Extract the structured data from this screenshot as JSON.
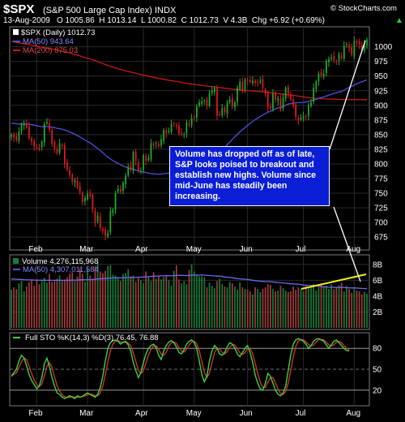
{
  "header": {
    "ticker": "$SPX",
    "name": "(S&P 500 Large Cap Index) INDX",
    "brand": "© StockCharts.com",
    "date": "13-Aug-2009",
    "ohlc": "O 1005.86  H 1013.14  L 1000.82  C 1012.73  V 4.3B  Chg +6.92 (+0.69%)",
    "ohlc_arrow": "▲"
  },
  "price_panel": {
    "legend_daily": "$SPX (Daily) 1012.73",
    "legend_ma50": "MA(50) 943.64",
    "legend_ma200": "MA(200) 875.03"
  },
  "volume_panel": {
    "legend_volume": "Volume 4,276,115,968",
    "legend_ma50": "MA(50) 4,307,011,584"
  },
  "sto_panel": {
    "legend": "Full STO %K(14,3) %D(3) 76.45, 76.88"
  },
  "annotation": {
    "text": "Volume has dropped off as of late, S&P looks poised to breakout and establish new highs. Volume since mid-June has steadily been increasing."
  },
  "colors": {
    "background": "#000000",
    "up_candle": "#1db32b",
    "down_candle": "#e21b22",
    "ma50": "#4f4fd9",
    "ma200": "#c81818",
    "volume_up": "#1a7a3a",
    "volume_down": "#a03b3b",
    "sto_k": "#d33a2c",
    "sto_d": "#41d141",
    "trend_line": "#f0f020",
    "callout": "#0a1ed6"
  },
  "chart_data": [
    {
      "type": "candlestick",
      "title": "$SPX (Daily)",
      "x_months": [
        "Feb",
        "Mar",
        "Apr",
        "May",
        "Jun",
        "Jul",
        "Aug"
      ],
      "y_ticks": [
        675,
        700,
        725,
        750,
        775,
        800,
        825,
        850,
        875,
        900,
        925,
        950,
        975,
        1000
      ],
      "ylim": [
        660,
        1030
      ],
      "close_series": [
        850,
        845,
        840,
        855,
        868,
        870,
        862,
        845,
        838,
        830,
        827,
        826,
        838,
        868,
        872,
        858,
        835,
        826,
        818,
        835,
        832,
        800,
        790,
        780,
        770,
        772,
        760,
        752,
        735,
        742,
        749,
        745,
        722,
        700,
        712,
        690,
        686,
        677,
        682,
        719,
        722,
        750,
        758,
        753,
        768,
        780,
        795,
        790,
        820,
        805,
        787,
        787,
        815,
        805,
        810,
        835,
        832,
        835,
        830,
        842,
        858,
        852,
        856,
        868,
        869,
        866,
        851,
        851,
        851,
        871,
        866,
        878,
        880,
        898,
        905,
        907,
        908,
        900,
        920,
        925,
        930,
        882,
        884,
        895,
        888,
        905,
        910,
        898,
        905,
        930,
        940,
        925,
        944,
        942,
        940,
        942,
        938,
        940,
        943,
        930,
        920,
        896,
        895,
        920,
        910,
        912,
        892,
        913,
        930,
        920,
        910,
        899,
        880,
        875,
        879,
        882,
        880,
        900,
        905,
        930,
        941,
        954,
        950,
        954,
        976,
        979,
        982,
        977,
        975,
        987,
        980,
        1002,
        1005,
        998,
        986,
        1010,
        1007,
        1004,
        992,
        1005,
        1012.73
      ],
      "series": [
        {
          "name": "$SPX (Daily)",
          "last": 1012.73
        },
        {
          "name": "MA(50)",
          "last": 943.64
        },
        {
          "name": "MA(200)",
          "last": 875.03
        }
      ]
    },
    {
      "type": "bar",
      "title": "Volume",
      "y_ticks": [
        "2B",
        "4B",
        "6B",
        "8B"
      ],
      "y_tick_values": [
        2,
        4,
        6,
        8
      ],
      "ylim": [
        0,
        9
      ],
      "values_billions": [
        4.8,
        5.1,
        4.9,
        5.6,
        5.9,
        4.6,
        5.2,
        5.8,
        6.0,
        5.3,
        6.1,
        5.5,
        5.9,
        6.3,
        5.7,
        6.8,
        5.8,
        5.9,
        6.2,
        6.6,
        5.9,
        6.1,
        6.4,
        6.8,
        7.0,
        5.9,
        6.5,
        7.5,
        6.8,
        5.8,
        7.4,
        6.6,
        6.2,
        7.8,
        8.4,
        7.1,
        6.9,
        7.2,
        7.8,
        7.9,
        6.7,
        6.6,
        6.4,
        5.9,
        6.8,
        6.9,
        7.4,
        6.5,
        6.6,
        5.8,
        6.3,
        6.0,
        5.6,
        7.1,
        6.4,
        5.9,
        7.0,
        6.2,
        6.6,
        6.1,
        6.4,
        6.5,
        6.0,
        5.3,
        7.2,
        7.9,
        6.1,
        5.6,
        5.9,
        5.5,
        7.3,
        8.0,
        7.1,
        6.7,
        6.5,
        6.5,
        6.4,
        5.1,
        5.7,
        5.3,
        5.0,
        5.9,
        6.2,
        5.5,
        5.2,
        5.1,
        5.8,
        5.6,
        5.2,
        4.8,
        5.7,
        5.1,
        4.9,
        4.8,
        4.6,
        4.2,
        5.1,
        4.9,
        4.5,
        4.9,
        5.1,
        5.5,
        5.4,
        4.9,
        4.6,
        4.7,
        5.3,
        5.0,
        4.7,
        4.5,
        4.6,
        5.2,
        4.8,
        5.1,
        4.9,
        4.6,
        5.3,
        5.0,
        5.2,
        5.5,
        4.7,
        5.1,
        5.6,
        5.2,
        5.3,
        4.9,
        5.5,
        4.9,
        5.1,
        5.4,
        5.7,
        4.6,
        5.3,
        4.9,
        4.4,
        4.9,
        4.7,
        4.6,
        4.2,
        4.5,
        4.3
      ],
      "ma50_last": 4.307,
      "last": 4.276
    },
    {
      "type": "line",
      "title": "Full STO %K(14,3) %D(3)",
      "y_ticks": [
        20,
        50,
        80
      ],
      "ylim": [
        0,
        100
      ],
      "k_values": [
        40,
        45,
        50,
        62,
        70,
        66,
        55,
        42,
        34,
        28,
        22,
        26,
        38,
        58,
        66,
        54,
        38,
        26,
        16,
        14,
        10,
        8,
        10,
        12,
        10,
        8,
        12,
        10,
        11,
        14,
        16,
        14,
        12,
        10,
        14,
        24,
        40,
        62,
        80,
        88,
        91,
        92,
        90,
        86,
        89,
        90,
        85,
        76,
        60,
        48,
        38,
        45,
        60,
        72,
        80,
        84,
        86,
        81,
        70,
        64,
        76,
        84,
        89,
        91,
        88,
        82,
        74,
        72,
        78,
        86,
        90,
        92,
        88,
        80,
        62,
        42,
        32,
        40,
        62,
        76,
        84,
        80,
        72,
        70,
        74,
        82,
        88,
        86,
        80,
        72,
        68,
        74,
        80,
        84,
        74,
        60,
        42,
        30,
        22,
        20,
        30,
        44,
        40,
        30,
        20,
        14,
        12,
        16,
        26,
        48,
        70,
        86,
        92,
        94,
        92,
        90,
        86,
        80,
        84,
        90,
        93,
        94,
        92,
        90,
        85,
        80,
        85,
        90,
        92,
        88,
        84,
        80,
        77,
        76.45
      ],
      "d_last": 76.88,
      "series": [
        {
          "name": "%K(14,3)",
          "last": 76.45
        },
        {
          "name": "%D(3)",
          "last": 76.88
        }
      ]
    }
  ]
}
